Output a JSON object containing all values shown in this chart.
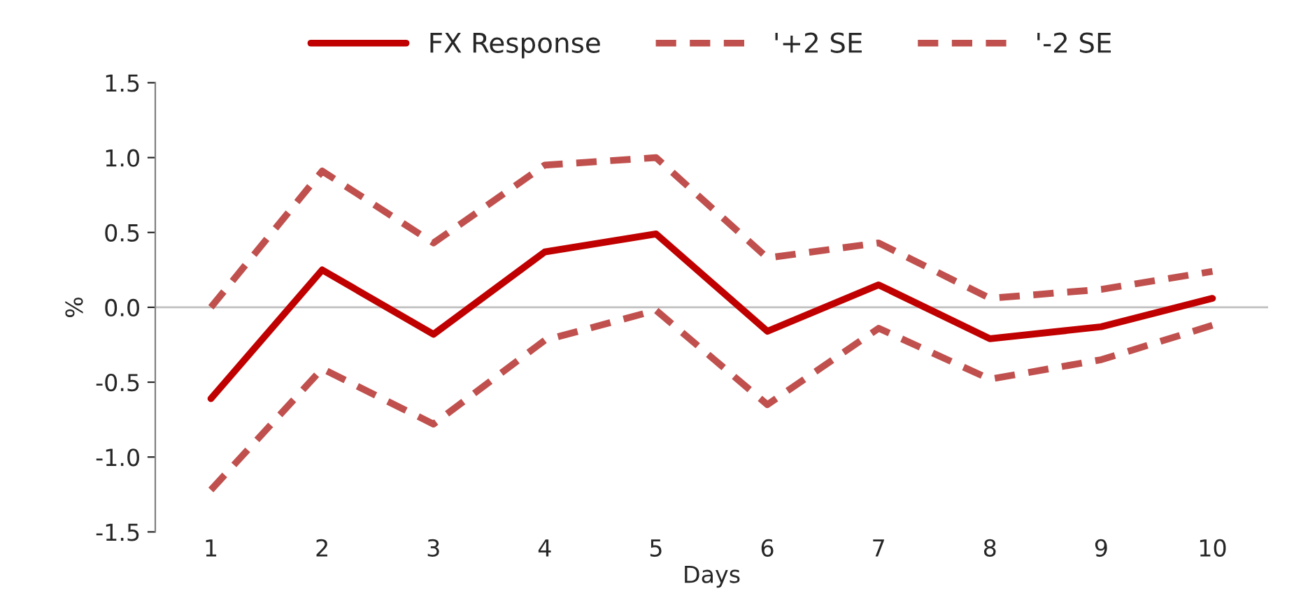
{
  "chart_data": {
    "type": "line",
    "xlabel": "Days",
    "ylabel": "%",
    "categories": [
      "1",
      "2",
      "3",
      "4",
      "5",
      "6",
      "7",
      "8",
      "9",
      "10"
    ],
    "series": [
      {
        "name": "FX Response",
        "color": "#c00000",
        "line_style": "solid",
        "values": [
          -0.61,
          0.25,
          -0.18,
          0.37,
          0.49,
          -0.16,
          0.15,
          -0.21,
          -0.13,
          0.06
        ]
      },
      {
        "name": "'+2 SE",
        "color": "#c0504d",
        "line_style": "dashed",
        "values": [
          0.0,
          0.91,
          0.43,
          0.95,
          1.0,
          0.33,
          0.43,
          0.06,
          0.12,
          0.24
        ]
      },
      {
        "name": "'-2 SE",
        "color": "#c0504d",
        "line_style": "dashed",
        "values": [
          -1.22,
          -0.41,
          -0.78,
          -0.22,
          -0.02,
          -0.65,
          -0.14,
          -0.48,
          -0.35,
          -0.12
        ]
      }
    ],
    "ylim": [
      -1.5,
      1.5
    ],
    "yticks": [
      {
        "value": 1.5,
        "label": "1.5"
      },
      {
        "value": 1.0,
        "label": "1.0"
      },
      {
        "value": 0.5,
        "label": "0.5"
      },
      {
        "value": 0.0,
        "label": "0.0"
      },
      {
        "value": -0.5,
        "label": "-0.5"
      },
      {
        "value": -1.0,
        "label": "-1.0"
      },
      {
        "value": -1.5,
        "label": "-1.5"
      }
    ],
    "ref_lines": [
      {
        "axis": "y",
        "value": 0,
        "color": "#bfbfbf"
      }
    ],
    "grid": false,
    "legend": "top",
    "marker": "none"
  }
}
